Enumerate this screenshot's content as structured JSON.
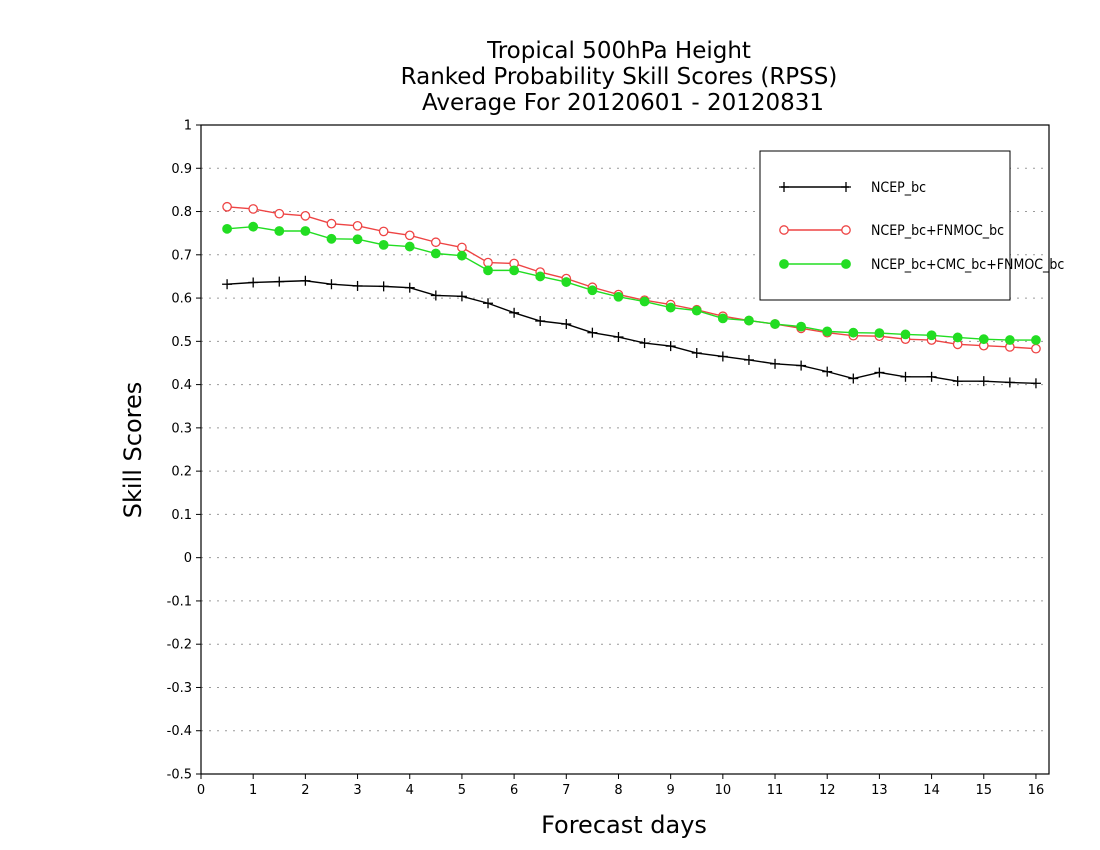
{
  "chart_data": {
    "type": "line",
    "title": [
      "Tropical 500hPa Height",
      "Ranked Probability Skill Scores (RPSS)",
      "Average For 20120601 - 20120831"
    ],
    "xlabel": "Forecast days",
    "ylabel": "Skill Scores",
    "xlim": [
      0,
      16.25
    ],
    "ylim": [
      -0.5,
      1
    ],
    "xticks": [
      0,
      1,
      2,
      3,
      4,
      5,
      6,
      7,
      8,
      9,
      10,
      11,
      12,
      13,
      14,
      15,
      16
    ],
    "yticks": [
      -0.5,
      -0.4,
      -0.3,
      -0.2,
      -0.1,
      0,
      0.1,
      0.2,
      0.3,
      0.4,
      0.5,
      0.6,
      0.7,
      0.8,
      0.9,
      1
    ],
    "ytick_labels": [
      "-0.5",
      "-0.4",
      "-0.3",
      "-0.2",
      "-0.1",
      "0",
      "0.1",
      "0.2",
      "0.3",
      "0.4",
      "0.5",
      "0.6",
      "0.7",
      "0.8",
      "0.9",
      "1"
    ],
    "grid": "horizontal dotted",
    "legend_position": "top-right",
    "x": [
      0.5,
      1,
      1.5,
      2,
      2.5,
      3,
      3.5,
      4,
      4.5,
      5,
      5.5,
      6,
      6.5,
      7,
      7.5,
      8,
      8.5,
      9,
      9.5,
      10,
      10.5,
      11,
      11.5,
      12,
      12.5,
      13,
      13.5,
      14,
      14.5,
      15,
      15.5,
      16
    ],
    "series": [
      {
        "name": "NCEP_bc",
        "color": "#000000",
        "marker": "plus",
        "values": [
          0.632,
          0.636,
          0.638,
          0.64,
          0.632,
          0.628,
          0.627,
          0.624,
          0.606,
          0.604,
          0.588,
          0.566,
          0.547,
          0.54,
          0.52,
          0.51,
          0.496,
          0.489,
          0.473,
          0.465,
          0.457,
          0.448,
          0.444,
          0.43,
          0.414,
          0.428,
          0.418,
          0.418,
          0.408,
          0.408,
          0.405,
          0.403
        ]
      },
      {
        "name": "NCEP_bc+FNMOC_bc",
        "color": "#ee4444",
        "marker": "open-circle",
        "values": [
          0.811,
          0.806,
          0.795,
          0.79,
          0.772,
          0.767,
          0.754,
          0.745,
          0.729,
          0.717,
          0.682,
          0.68,
          0.66,
          0.645,
          0.625,
          0.608,
          0.595,
          0.585,
          0.573,
          0.558,
          0.548,
          0.54,
          0.53,
          0.52,
          0.513,
          0.512,
          0.505,
          0.503,
          0.493,
          0.49,
          0.487,
          0.483
        ]
      },
      {
        "name": "NCEP_bc+CMC_bc+FNMOC_bc",
        "color": "#22dd22",
        "marker": "filled-circle",
        "values": [
          0.76,
          0.765,
          0.755,
          0.755,
          0.737,
          0.736,
          0.723,
          0.719,
          0.703,
          0.698,
          0.664,
          0.664,
          0.65,
          0.637,
          0.618,
          0.603,
          0.592,
          0.578,
          0.571,
          0.553,
          0.548,
          0.54,
          0.534,
          0.523,
          0.52,
          0.519,
          0.516,
          0.514,
          0.509,
          0.505,
          0.503,
          0.503
        ]
      }
    ]
  }
}
